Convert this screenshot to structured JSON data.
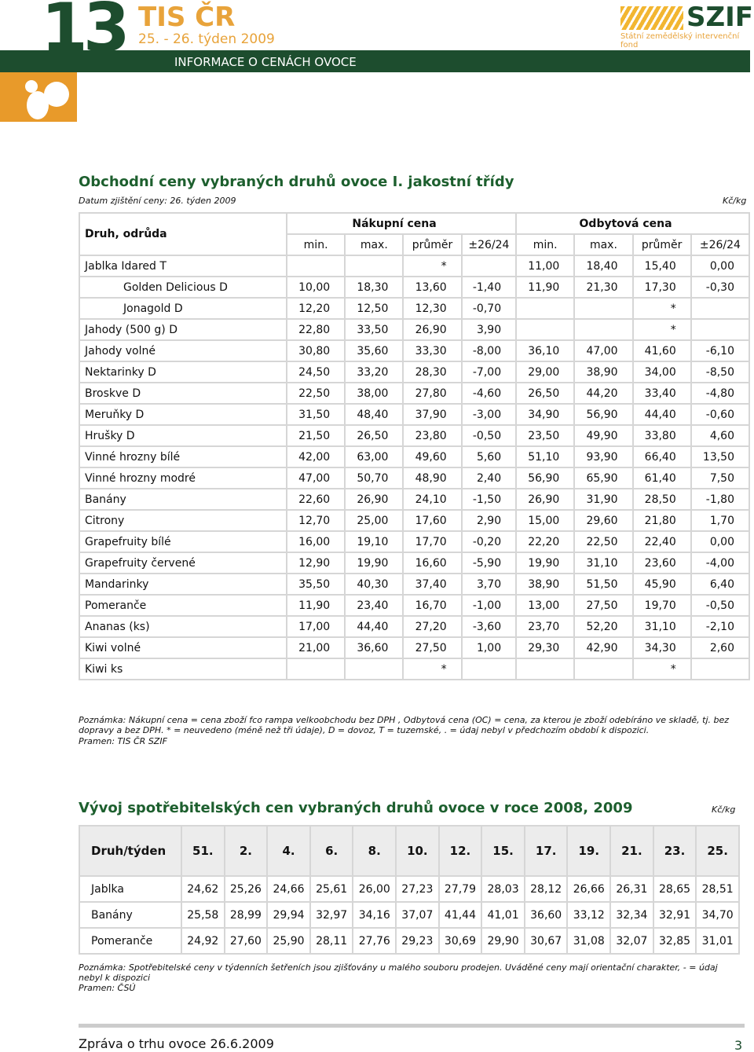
{
  "header": {
    "number": "13",
    "brand": "TIS ČR",
    "period": "25. - 26. týden 2009",
    "logo": "SZIF",
    "logo_sub": "Státní zemědělský intervenční fond",
    "banner": "INFORMACE O CENÁCH OVOCE"
  },
  "section1": {
    "title": "Obchodní ceny vybraných druhů ovoce I. jakostní třídy",
    "survey_date": "Datum zjištění ceny: 26. týden 2009",
    "unit": "Kč/kg",
    "col_head": "Druh, odrůda",
    "groups": [
      "Nákupní cena",
      "Odbytová cena"
    ],
    "subheads": [
      "min.",
      "max.",
      "průměr",
      "±26/24",
      "min.",
      "max.",
      "průměr",
      "±26/24"
    ],
    "rows": [
      {
        "name": "Jablka Idared T",
        "cells": [
          null,
          null,
          "*",
          null,
          "11,00",
          "18,40",
          "15,40",
          "0,00"
        ]
      },
      {
        "name": "Golden Delicious D",
        "cells": [
          "10,00",
          "18,30",
          "13,60",
          "-1,40",
          "11,90",
          "21,30",
          "17,30",
          "-0,30"
        ]
      },
      {
        "name": "Jonagold D",
        "cells": [
          "12,20",
          "12,50",
          "12,30",
          "-0,70",
          null,
          null,
          "*",
          null
        ]
      },
      {
        "name": "Jahody (500 g) D",
        "cells": [
          "22,80",
          "33,50",
          "26,90",
          "3,90",
          null,
          null,
          "*",
          null
        ]
      },
      {
        "name": "Jahody volné",
        "cells": [
          "30,80",
          "35,60",
          "33,30",
          "-8,00",
          "36,10",
          "47,00",
          "41,60",
          "-6,10"
        ]
      },
      {
        "name": "Nektarinky D",
        "cells": [
          "24,50",
          "33,20",
          "28,30",
          "-7,00",
          "29,00",
          "38,90",
          "34,00",
          "-8,50"
        ]
      },
      {
        "name": "Broskve D",
        "cells": [
          "22,50",
          "38,00",
          "27,80",
          "-4,60",
          "26,50",
          "44,20",
          "33,40",
          "-4,80"
        ]
      },
      {
        "name": "Meruňky D",
        "cells": [
          "31,50",
          "48,40",
          "37,90",
          "-3,00",
          "34,90",
          "56,90",
          "44,40",
          "-0,60"
        ]
      },
      {
        "name": "Hrušky D",
        "cells": [
          "21,50",
          "26,50",
          "23,80",
          "-0,50",
          "23,50",
          "49,90",
          "33,80",
          "4,60"
        ]
      },
      {
        "name": "Vinné hrozny bílé",
        "cells": [
          "42,00",
          "63,00",
          "49,60",
          "5,60",
          "51,10",
          "93,90",
          "66,40",
          "13,50"
        ]
      },
      {
        "name": "Vinné hrozny modré",
        "cells": [
          "47,00",
          "50,70",
          "48,90",
          "2,40",
          "56,90",
          "65,90",
          "61,40",
          "7,50"
        ]
      },
      {
        "name": "Banány",
        "cells": [
          "22,60",
          "26,90",
          "24,10",
          "-1,50",
          "26,90",
          "31,90",
          "28,50",
          "-1,80"
        ]
      },
      {
        "name": "Citrony",
        "cells": [
          "12,70",
          "25,00",
          "17,60",
          "2,90",
          "15,00",
          "29,60",
          "21,80",
          "1,70"
        ]
      },
      {
        "name": "Grapefruity bílé",
        "cells": [
          "16,00",
          "19,10",
          "17,70",
          "-0,20",
          "22,20",
          "22,50",
          "22,40",
          "0,00"
        ]
      },
      {
        "name": "Grapefruity červené",
        "cells": [
          "12,90",
          "19,90",
          "16,60",
          "-5,90",
          "19,90",
          "31,10",
          "23,60",
          "-4,00"
        ]
      },
      {
        "name": "Mandarinky",
        "cells": [
          "35,50",
          "40,30",
          "37,40",
          "3,70",
          "38,90",
          "51,50",
          "45,90",
          "6,40"
        ]
      },
      {
        "name": "Pomeranče",
        "cells": [
          "11,90",
          "23,40",
          "16,70",
          "-1,00",
          "13,00",
          "27,50",
          "19,70",
          "-0,50"
        ]
      },
      {
        "name": "Ananas (ks)",
        "cells": [
          "17,00",
          "44,40",
          "27,20",
          "-3,60",
          "23,70",
          "52,20",
          "31,10",
          "-2,10"
        ]
      },
      {
        "name": "Kiwi volné",
        "cells": [
          "21,00",
          "36,60",
          "27,50",
          "1,00",
          "29,30",
          "42,90",
          "34,30",
          "2,60"
        ]
      },
      {
        "name": "Kiwi ks",
        "cells": [
          null,
          null,
          "*",
          null,
          null,
          null,
          "*",
          null
        ]
      }
    ],
    "note": "Poznámka: Nákupní cena = cena zboží fco rampa velkoobchodu bez DPH , Odbytová cena (OC) = cena, za kterou je zboží odebíráno ve skladě, tj. bez dopravy a bez DPH. * = neuvedeno (méně než tři údaje), D = dovoz, T = tuzemské, . = údaj nebyl v předchozím období k dispozici.",
    "source": "Pramen: TIS ČR SZIF"
  },
  "section2": {
    "title": "Vývoj spotřebitelských cen vybraných druhů ovoce v roce 2008, 2009",
    "unit": "Kč/kg",
    "col_head": "Druh/týden",
    "weeks": [
      "51.",
      "2.",
      "4.",
      "6.",
      "8.",
      "10.",
      "12.",
      "15.",
      "17.",
      "19.",
      "21.",
      "23.",
      "25."
    ],
    "rows": [
      {
        "name": "Jablka",
        "values": [
          "24,62",
          "25,26",
          "24,66",
          "25,61",
          "26,00",
          "27,23",
          "27,79",
          "28,03",
          "28,12",
          "26,66",
          "26,31",
          "28,65",
          "28,51"
        ]
      },
      {
        "name": "Banány",
        "values": [
          "25,58",
          "28,99",
          "29,94",
          "32,97",
          "34,16",
          "37,07",
          "41,44",
          "41,01",
          "36,60",
          "33,12",
          "32,34",
          "32,91",
          "34,70"
        ]
      },
      {
        "name": "Pomeranče",
        "values": [
          "24,92",
          "27,60",
          "25,90",
          "28,11",
          "27,76",
          "29,23",
          "30,69",
          "29,90",
          "30,67",
          "31,08",
          "32,07",
          "32,85",
          "31,01"
        ]
      }
    ],
    "note": "Poznámka: Spotřebitelské ceny v týdenních šetřeních jsou zjišťovány u malého souboru prodejen. Uváděné ceny mají orientační charakter, - = údaj nebyl k dispozici",
    "source": "Pramen: ČSÚ"
  },
  "footer": {
    "text": "Zpráva o trhu ovoce 26.6.2009",
    "page": "3"
  }
}
